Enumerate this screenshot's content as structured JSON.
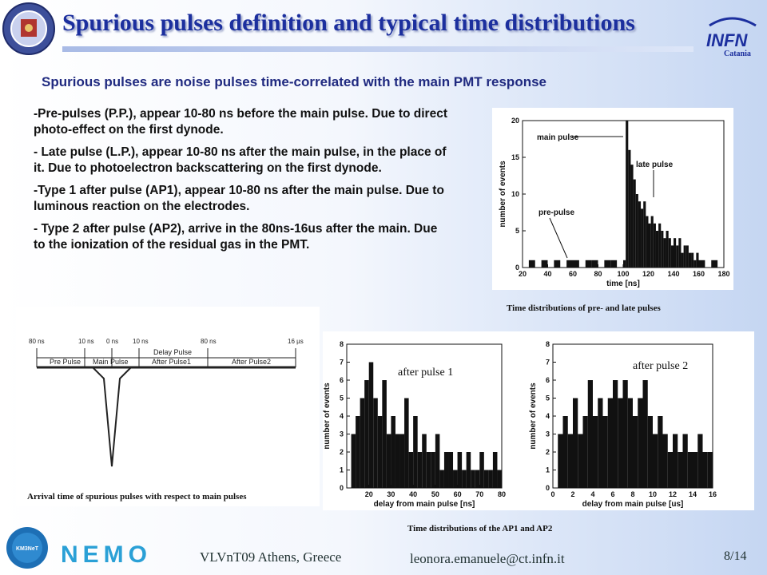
{
  "title": "Spurious pulses definition and typical time distributions",
  "logo_infn": {
    "main": "INFN",
    "sub": "Catania"
  },
  "logo_nemo": "NEMO",
  "logo_km3": "KM3NeT",
  "subtitle": "Spurious pulses are noise pulses time-correlated with the main PMT response",
  "bullets": [
    "-Pre-pulses (P.P.), appear 10-80 ns before the main pulse. Due to direct photo-effect on the first dynode.",
    "- Late pulse (L.P.), appear 10-80 ns after the main pulse, in the place of it. Due to photoelectron backscattering on the first dynode.",
    "-Type 1 after pulse (AP1), appear 10-80 ns after the main pulse. Due to luminous reaction on the electrodes.",
    "- Type 2 after pulse (AP2), arrive in the 80ns-16us after the main. Due to the ionization of the residual gas in the PMT."
  ],
  "captions": {
    "top_right": "Time distributions of pre- and late pulses",
    "bottom_left": "Arrival time of spurious pulses with respect to main pulses",
    "bottom_right": "Time distributions of the AP1 and AP2"
  },
  "diagram": {
    "tick_labels": [
      "80 ns",
      "10 ns",
      "0 ns",
      "10 ns",
      "80 ns",
      "16 µs"
    ],
    "segments": [
      "Pre Pulse",
      "Main Pulse",
      "Delay Pulse",
      "After Pulse1",
      "After Pulse2"
    ]
  },
  "chart_data": [
    {
      "type": "bar",
      "title": "",
      "xlabel": "time [ns]",
      "ylabel": "number of events",
      "xlim": [
        20,
        180
      ],
      "ylim": [
        0,
        20
      ],
      "xticks": [
        20,
        40,
        60,
        80,
        100,
        120,
        140,
        160,
        180
      ],
      "yticks": [
        0,
        5,
        10,
        15,
        20
      ],
      "annotations": [
        "main pulse",
        "late pulse",
        "pre-pulse"
      ],
      "x": [
        20,
        25,
        30,
        35,
        40,
        45,
        50,
        55,
        60,
        65,
        70,
        75,
        80,
        85,
        90,
        95,
        100,
        102,
        104,
        106,
        108,
        110,
        112,
        114,
        116,
        118,
        120,
        122,
        124,
        126,
        128,
        130,
        132,
        134,
        136,
        138,
        140,
        142,
        144,
        146,
        148,
        150,
        152,
        154,
        156,
        158,
        160,
        165,
        170,
        175
      ],
      "values": [
        0,
        1,
        0,
        1,
        0,
        1,
        0,
        1,
        1,
        0,
        1,
        1,
        0,
        1,
        1,
        0,
        1,
        20,
        16,
        14,
        12,
        10,
        9,
        8,
        9,
        7,
        6,
        7,
        6,
        5,
        6,
        5,
        4,
        5,
        4,
        3,
        4,
        3,
        4,
        2,
        3,
        3,
        2,
        2,
        1,
        2,
        1,
        0,
        1,
        0
      ]
    },
    {
      "type": "bar",
      "title": "",
      "label": "after pulse 1",
      "xlabel": "delay from main pulse [ns]",
      "ylabel": "number of events",
      "xlim": [
        10,
        80
      ],
      "ylim": [
        0,
        8
      ],
      "xticks": [
        20,
        30,
        40,
        50,
        60,
        70,
        80
      ],
      "yticks": [
        0,
        1,
        2,
        3,
        4,
        5,
        6,
        7,
        8
      ],
      "x": [
        12,
        14,
        16,
        18,
        20,
        22,
        24,
        26,
        28,
        30,
        32,
        34,
        36,
        38,
        40,
        42,
        44,
        46,
        48,
        50,
        52,
        54,
        56,
        58,
        60,
        62,
        64,
        66,
        68,
        70,
        72,
        74,
        76,
        78
      ],
      "values": [
        3,
        4,
        5,
        6,
        7,
        5,
        4,
        6,
        3,
        4,
        3,
        3,
        5,
        2,
        4,
        2,
        3,
        2,
        2,
        3,
        1,
        2,
        2,
        1,
        2,
        1,
        2,
        1,
        1,
        2,
        1,
        1,
        2,
        1
      ]
    },
    {
      "type": "bar",
      "title": "",
      "label": "after pulse 2",
      "xlabel": "delay from main pulse [us]",
      "ylabel": "number of events",
      "xlim": [
        0,
        16
      ],
      "ylim": [
        0,
        8
      ],
      "xticks": [
        0,
        2,
        4,
        6,
        8,
        10,
        12,
        14,
        16
      ],
      "yticks": [
        0,
        1,
        2,
        3,
        4,
        5,
        6,
        7,
        8
      ],
      "x": [
        0.5,
        1,
        1.5,
        2,
        2.5,
        3,
        3.5,
        4,
        4.5,
        5,
        5.5,
        6,
        6.5,
        7,
        7.5,
        8,
        8.5,
        9,
        9.5,
        10,
        10.5,
        11,
        11.5,
        12,
        12.5,
        13,
        13.5,
        14,
        14.5,
        15,
        15.5
      ],
      "values": [
        3,
        4,
        3,
        5,
        3,
        4,
        6,
        4,
        5,
        4,
        5,
        6,
        5,
        6,
        5,
        4,
        5,
        6,
        4,
        3,
        4,
        3,
        2,
        3,
        2,
        3,
        2,
        2,
        3,
        2,
        2
      ]
    }
  ],
  "footer": {
    "location": "VLVnT09 Athens, Greece",
    "email": "leonora.emanuele@ct.infn.it",
    "page": "8/14"
  },
  "colors": {
    "title": "#1c2f9e",
    "subtitle": "#202a80"
  }
}
